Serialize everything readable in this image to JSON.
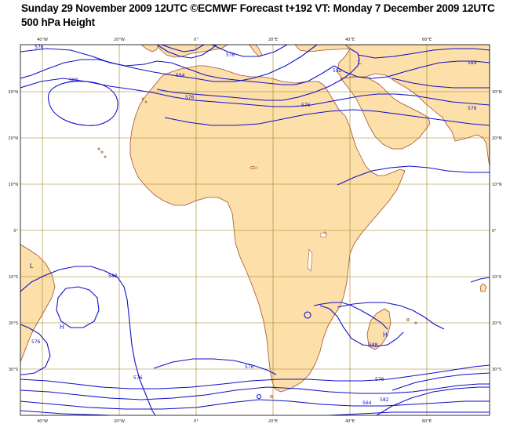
{
  "header": {
    "line1": "Sunday 29 November 2009 12UTC ©ECMWF Forecast t+192 VT: Monday 7 December 2009 12UTC",
    "line2": "500 hPa Height"
  },
  "colors": {
    "land": "#fddfaa",
    "coast": "#a0522d",
    "grid": "#a07c1e",
    "contour": "#1010c8"
  },
  "axes": {
    "top_lon_ticks": [
      {
        "label": "40°W",
        "lon": -40
      },
      {
        "label": "20°W",
        "lon": -20
      },
      {
        "label": "0°",
        "lon": 0
      },
      {
        "label": "20°E",
        "lon": 20
      },
      {
        "label": "40°E",
        "lon": 40
      },
      {
        "label": "60°E",
        "lon": 60
      }
    ],
    "bottom_lon_ticks": [
      {
        "label": "40°W",
        "lon": -40
      },
      {
        "label": "20°W",
        "lon": -20
      },
      {
        "label": "0°",
        "lon": 0
      },
      {
        "label": "20°E",
        "lon": 20
      },
      {
        "label": "40°E",
        "lon": 40
      },
      {
        "label": "60°E",
        "lon": 60
      }
    ],
    "left_lat_ticks": [
      {
        "label": "30°N",
        "lat": 30
      },
      {
        "label": "20°N",
        "lat": 20
      },
      {
        "label": "10°N",
        "lat": 10
      },
      {
        "label": "0°",
        "lat": 0
      },
      {
        "label": "10°S",
        "lat": -10
      },
      {
        "label": "20°S",
        "lat": -20
      },
      {
        "label": "30°S",
        "lat": -30
      }
    ],
    "right_lat_ticks": [
      {
        "label": "30°N",
        "lat": 30
      },
      {
        "label": "20°N",
        "lat": 20
      },
      {
        "label": "10°N",
        "lat": 10
      },
      {
        "label": "0°",
        "lat": 0
      },
      {
        "label": "10°S",
        "lat": -10
      },
      {
        "label": "20°S",
        "lat": -20
      },
      {
        "label": "30°S",
        "lat": -30
      }
    ]
  },
  "contour_labels": {
    "c576_nw": "576",
    "c588_nw": "588",
    "c576_top": "576",
    "c564": "564",
    "c576_sahara": "576",
    "c576_arabia": "576",
    "c576_east": "576",
    "c584_east": "584",
    "c582": "582",
    "c588_sw": "588",
    "c576_south": "576",
    "c576_south2": "576",
    "c576_se": "576",
    "c582_se": "582",
    "c564_se": "564",
    "c588_madagascar": "588",
    "c576_sw": "576"
  },
  "pressure_centers": {
    "low_ne": "L",
    "low_sw": "L",
    "high_sw": "H",
    "high_madagascar": "H"
  }
}
